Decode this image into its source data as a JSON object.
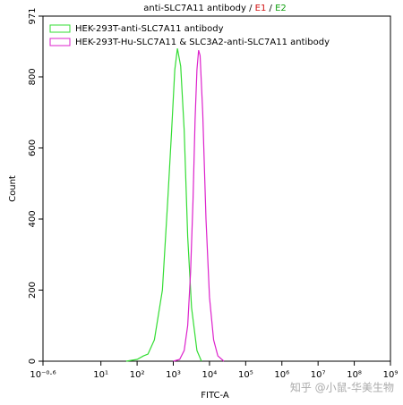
{
  "chart_data": {
    "type": "line",
    "title_parts": [
      {
        "text": "anti-SLC7A11 antibody / ",
        "color": "#000000"
      },
      {
        "text": "E1",
        "color": "#d01010"
      },
      {
        "text": " / ",
        "color": "#000000"
      },
      {
        "text": "E2",
        "color": "#10a010"
      }
    ],
    "xlabel": "FITC-A",
    "ylabel": "Count",
    "xlog": true,
    "xlim": [
      0.251,
      1000000000
    ],
    "xticks": [
      {
        "value": 0.251,
        "label": "10⁻⁰·⁶"
      },
      {
        "value": 10,
        "label": "10¹"
      },
      {
        "value": 100,
        "label": "10²"
      },
      {
        "value": 1000,
        "label": "10³"
      },
      {
        "value": 10000,
        "label": "10⁴"
      },
      {
        "value": 100000,
        "label": "10⁵"
      },
      {
        "value": 1000000,
        "label": "10⁶"
      },
      {
        "value": 10000000,
        "label": "10⁷"
      },
      {
        "value": 100000000,
        "label": "10⁸"
      },
      {
        "value": 1000000000,
        "label": "10⁹"
      }
    ],
    "ylim": [
      0,
      971
    ],
    "yticks": [
      0,
      200,
      400,
      600,
      800,
      971
    ],
    "legend": "upper left",
    "series": [
      {
        "name": "HEK-293T-anti-SLC7A11 antibody",
        "color": "#33dd33",
        "x": [
          50,
          100,
          150,
          200,
          300,
          500,
          700,
          900,
          1100,
          1300,
          1600,
          2000,
          2500,
          3200,
          4500,
          6000
        ],
        "values": [
          0,
          5,
          15,
          20,
          60,
          200,
          450,
          650,
          820,
          880,
          830,
          650,
          350,
          150,
          30,
          0
        ]
      },
      {
        "name": "HEK-293T-Hu-SLC7A11 & SLC3A2-anti-SLC7A11 antibody",
        "color": "#dd22cc",
        "x": [
          1000,
          1500,
          2000,
          2500,
          3000,
          3500,
          4000,
          4500,
          5000,
          5500,
          6500,
          8000,
          10000,
          13000,
          17000,
          25000
        ],
        "values": [
          0,
          5,
          30,
          100,
          250,
          450,
          680,
          820,
          875,
          860,
          700,
          400,
          180,
          60,
          15,
          0
        ]
      }
    ],
    "watermark": "知乎 @小鼠-华美生物"
  }
}
